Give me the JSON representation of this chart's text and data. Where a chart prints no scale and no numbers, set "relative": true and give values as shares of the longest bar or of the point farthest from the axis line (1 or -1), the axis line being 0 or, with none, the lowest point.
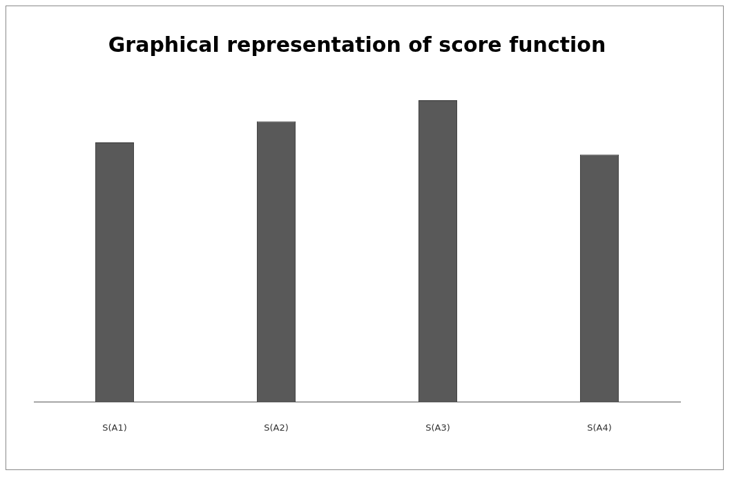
{
  "chart_data": {
    "type": "bar",
    "title": "Graphical representation of score function",
    "categories": [
      "S(A1)",
      "S(A2)",
      "S(A3)",
      "S(A4)"
    ],
    "values": [
      0.86,
      0.93,
      1,
      0.82
    ],
    "color": "#595959",
    "relative": true,
    "grid": false,
    "legend": false
  }
}
